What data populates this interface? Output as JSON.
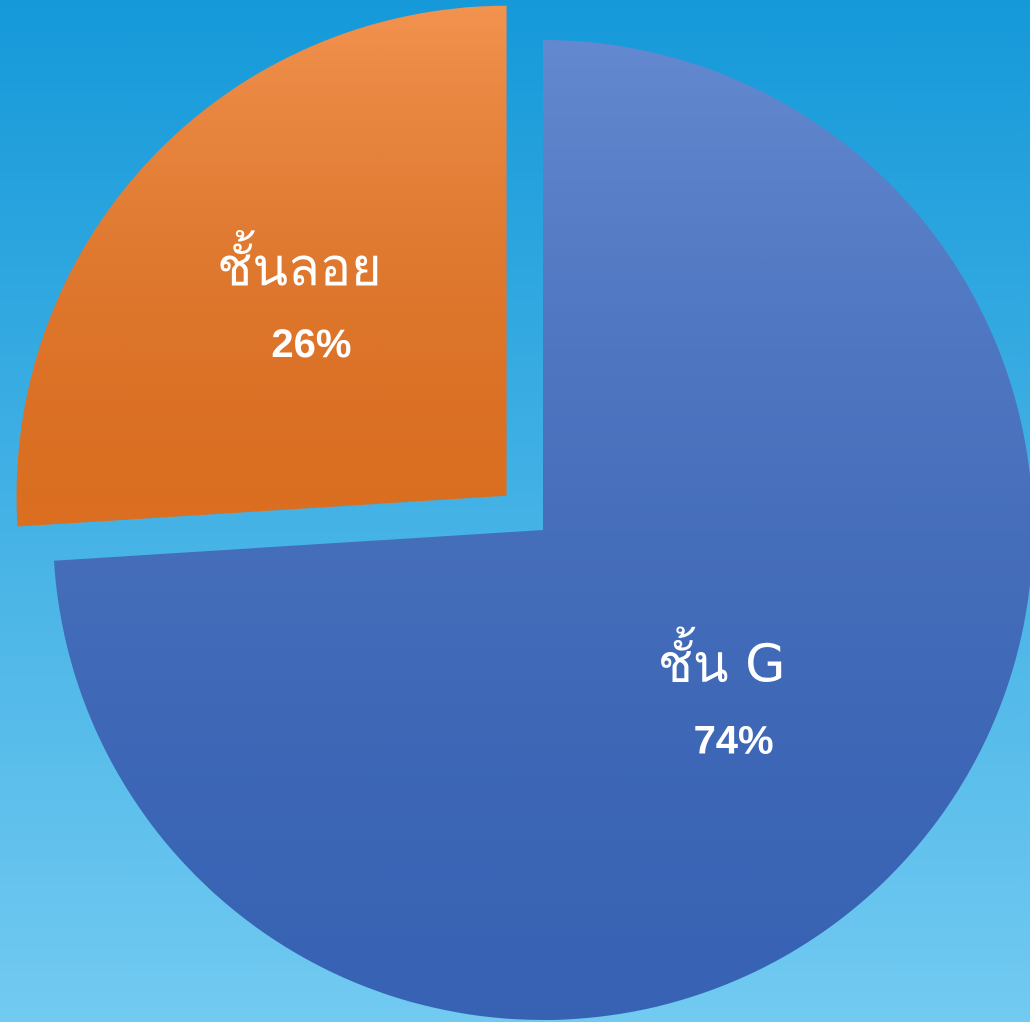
{
  "chart_data": {
    "type": "pie",
    "categories": [
      "ชั้น G",
      "ชั้นลอย"
    ],
    "values": [
      74,
      26
    ],
    "value_labels": [
      "74%",
      "26%"
    ],
    "colors": [
      "#3c6bc4",
      "#ee7722"
    ]
  }
}
